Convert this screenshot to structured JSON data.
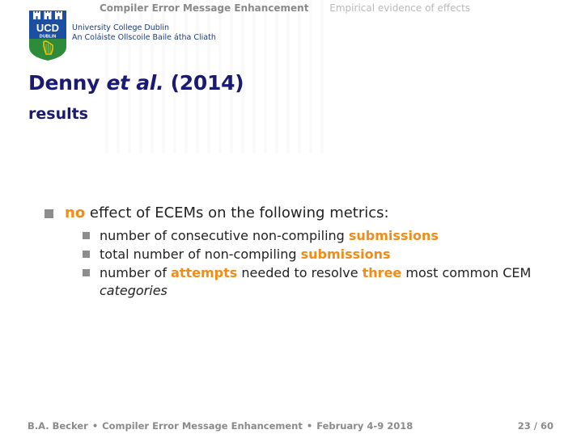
{
  "nav": {
    "active_section": "Compiler Error Message Enhancement",
    "next_section": "Empirical evidence of effects"
  },
  "logo": {
    "letters": "UCD",
    "crest_word": "DUBLIN",
    "line1": "University College Dublin",
    "line2": "An Coláiste Ollscoile Baile átha Cliath"
  },
  "slide": {
    "title_main": "Denny",
    "title_etal": "et al.",
    "title_year": "(2014)",
    "subtitle": "results"
  },
  "bullet": {
    "highlight": "no",
    "text": " effect of ECEMs on the following metrics:",
    "subitems": [
      {
        "pre": "number of consecutive non-compiling ",
        "hl": "submissions"
      },
      {
        "pre": "total number of non-compiling ",
        "hl": "submissions"
      },
      {
        "pre": "number of ",
        "hl1": "attempts",
        "mid": " needed to resolve ",
        "hl2": "three",
        "post": " most common CEM ",
        "italic": "categories"
      }
    ]
  },
  "footer": {
    "author": "B.A. Becker",
    "talk": "Compiler Error Message Enhancement",
    "date": "February 4-9 2018",
    "page": "23 / 60"
  },
  "colors": {
    "title": "#1a1a72",
    "highlight": "#f08c17",
    "bullet": "#8d8d8d",
    "crest_blue": "#1d4fa0",
    "crest_green": "#2e8b3a"
  }
}
